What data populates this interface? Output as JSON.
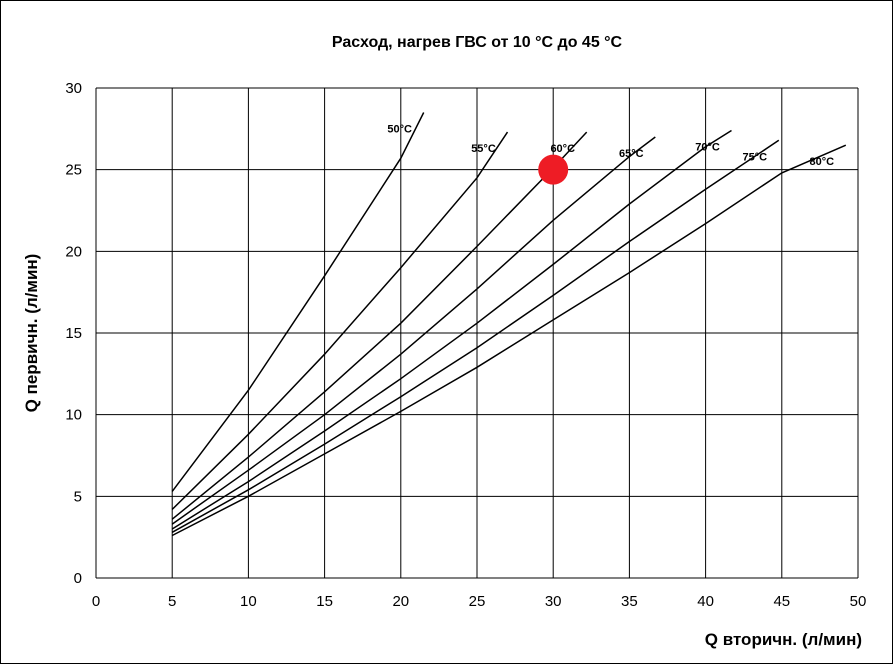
{
  "chart_data": {
    "type": "line",
    "title": "Расход, нагрев ГВС от 10 °C до 45 °C",
    "xlabel": "Q вторичн. (л/мин)",
    "ylabel": "Q первичн. (л/мин)",
    "xlim": [
      0,
      50
    ],
    "ylim": [
      0,
      30
    ],
    "xticks": [
      "0",
      "5",
      "10",
      "15",
      "20",
      "25",
      "30",
      "35",
      "40",
      "45",
      "50"
    ],
    "yticks": [
      "0",
      "5",
      "10",
      "15",
      "20",
      "25",
      "30"
    ],
    "grid": true,
    "series": [
      {
        "name": "50°C",
        "x": [
          5,
          10,
          15,
          20,
          21.5
        ],
        "y": [
          5.3,
          11.5,
          18.5,
          25.7,
          28.5
        ]
      },
      {
        "name": "55°C",
        "x": [
          5,
          10,
          15,
          20,
          25,
          27
        ],
        "y": [
          4.2,
          8.8,
          13.7,
          19.0,
          24.5,
          27.3
        ]
      },
      {
        "name": "60°C",
        "x": [
          5,
          10,
          15,
          20,
          25,
          30,
          32.2
        ],
        "y": [
          3.6,
          7.4,
          11.4,
          15.6,
          20.3,
          25.1,
          27.3
        ]
      },
      {
        "name": "65°C",
        "x": [
          5,
          10,
          15,
          20,
          25,
          30,
          35,
          36.7
        ],
        "y": [
          3.3,
          6.6,
          10.0,
          13.7,
          17.7,
          21.9,
          25.8,
          27.0
        ]
      },
      {
        "name": "70°C",
        "x": [
          5,
          10,
          15,
          20,
          25,
          30,
          35,
          40,
          41.7
        ],
        "y": [
          3.0,
          5.9,
          9.0,
          12.2,
          15.6,
          19.2,
          22.9,
          26.4,
          27.4
        ]
      },
      {
        "name": "75°C",
        "x": [
          5,
          10,
          15,
          20,
          25,
          30,
          35,
          40,
          44.8
        ],
        "y": [
          2.8,
          5.4,
          8.2,
          11.1,
          14.1,
          17.3,
          20.6,
          23.8,
          26.8
        ]
      },
      {
        "name": "80°C",
        "x": [
          5,
          10,
          15,
          20,
          25,
          30,
          35,
          40,
          45,
          49.2
        ],
        "y": [
          2.6,
          5.0,
          7.6,
          10.2,
          12.9,
          15.8,
          18.7,
          21.7,
          24.8,
          26.5
        ]
      }
    ],
    "highlight_point": {
      "x": 30,
      "y": 25,
      "color": "#ee1c25"
    }
  }
}
